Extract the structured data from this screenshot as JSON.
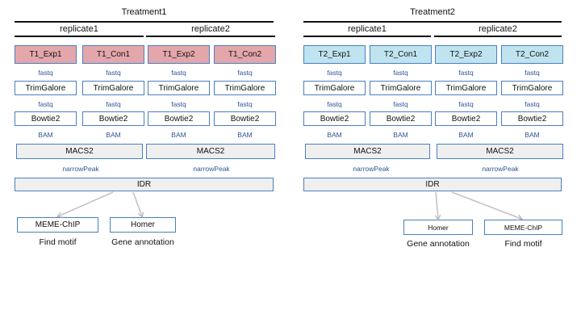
{
  "panels": [
    {
      "title": "Treatment1",
      "replicates": [
        "replicate1",
        "replicate2"
      ],
      "samples": [
        "T1_Exp1",
        "T1_Con1",
        "T1_Exp2",
        "T1_Con2"
      ],
      "color": "#e3a7ab",
      "trim_label": "TrimGalore",
      "align_label": "Bowtie2",
      "peak_label": "MACS2",
      "idr_label": "IDR",
      "fastq": "fastq",
      "bam": "BAM",
      "narrowpeak": "narrowPeak",
      "outputs": [
        {
          "tool": "MEME-ChIP",
          "caption": "Find motif"
        },
        {
          "tool": "Homer",
          "caption": "Gene annotation"
        }
      ]
    },
    {
      "title": "Treatment2",
      "replicates": [
        "replicate1",
        "replicate2"
      ],
      "samples": [
        "T2_Exp1",
        "T2_Con1",
        "T2_Exp2",
        "T2_Con2"
      ],
      "color": "#bfe4ef",
      "trim_label": "TrimGalore",
      "align_label": "Bowtie2",
      "peak_label": "MACS2",
      "idr_label": "IDR",
      "fastq": "fastq",
      "bam": "BAM",
      "narrowpeak": "narrowPeak",
      "outputs": [
        {
          "tool": "Homer",
          "caption": "Gene annotation"
        },
        {
          "tool": "MEME-ChIP",
          "caption": "Find motif"
        }
      ]
    }
  ]
}
